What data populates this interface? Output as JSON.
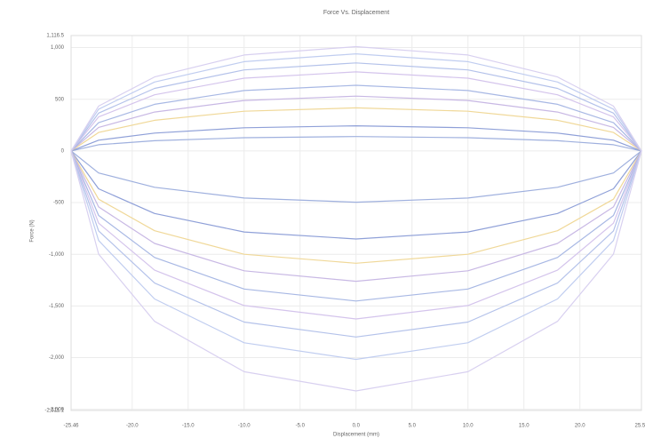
{
  "chart_data": {
    "type": "line",
    "title": "Force Vs. Displacement",
    "x_label": "Displacement (mm)",
    "y_label": "Force (N)",
    "x": [
      -25.46,
      -23,
      -18,
      -10,
      0,
      10,
      18,
      23,
      25.5,
      25.5,
      23,
      18,
      10,
      0,
      -10,
      -18,
      -23,
      -25.46
    ],
    "series": [
      {
        "color": "#9fb0de",
        "values": [
          0,
          60,
          99,
          128,
          139,
          128,
          99,
          60,
          0,
          0,
          -213,
          -352,
          -456,
          -496,
          -456,
          -352,
          -213,
          0
        ]
      },
      {
        "color": "#8fa0d8",
        "values": [
          0,
          104,
          173,
          224,
          243,
          224,
          173,
          104,
          0,
          0,
          -366,
          -605,
          -784,
          -852,
          -784,
          -605,
          -366,
          0
        ]
      },
      {
        "color": "#f0d898",
        "values": [
          0,
          179,
          296,
          384,
          417,
          384,
          296,
          179,
          0,
          0,
          -467,
          -772,
          -1000,
          -1087,
          -1000,
          -772,
          -467,
          0
        ]
      },
      {
        "color": "#c8b8e4",
        "values": [
          0,
          228,
          376,
          488,
          530,
          488,
          376,
          228,
          0,
          0,
          -542,
          -895,
          -1160,
          -1261,
          -1160,
          -895,
          -542,
          0
        ]
      },
      {
        "color": "#a8b8e4",
        "values": [
          0,
          273,
          451,
          584,
          635,
          584,
          451,
          273,
          0,
          0,
          -624,
          -1031,
          -1336,
          -1452,
          -1336,
          -1031,
          -624,
          0
        ]
      },
      {
        "color": "#d4c4ec",
        "values": [
          0,
          329,
          543,
          704,
          765,
          704,
          543,
          329,
          0,
          0,
          -699,
          -1154,
          -1496,
          -1626,
          -1496,
          -1154,
          -699,
          0
        ]
      },
      {
        "color": "#b4c2ea",
        "values": [
          0,
          366,
          605,
          784,
          852,
          784,
          605,
          366,
          0,
          0,
          -774,
          -1278,
          -1656,
          -1800,
          -1656,
          -1278,
          -774,
          0
        ]
      },
      {
        "color": "#c0cdf0",
        "values": [
          0,
          404,
          667,
          864,
          939,
          864,
          667,
          404,
          0,
          0,
          -867,
          -1432,
          -1856,
          -2017,
          -1856,
          -1432,
          -867,
          0
        ]
      },
      {
        "color": "#d8d0f0",
        "values": [
          0,
          434,
          716,
          928,
          1009,
          928,
          716,
          434,
          0,
          0,
          -998,
          -1649,
          -2136,
          -2322,
          -2136,
          -1649,
          -998,
          0
        ]
      }
    ],
    "xlim": [
      -25.46,
      25.5
    ],
    "xticks": [
      {
        "value": -25.46,
        "label": "-25.46"
      },
      {
        "value": -20,
        "label": "-20.0"
      },
      {
        "value": -15,
        "label": "-15.0"
      },
      {
        "value": -10,
        "label": "-10.0"
      },
      {
        "value": -5,
        "label": "-5.0"
      },
      {
        "value": 0,
        "label": "0.0"
      },
      {
        "value": 5,
        "label": "5.0"
      },
      {
        "value": 10,
        "label": "10.0"
      },
      {
        "value": 15,
        "label": "15.0"
      },
      {
        "value": 20,
        "label": "20.0"
      },
      {
        "value": 25.5,
        "label": "25.50"
      }
    ],
    "ylim": [
      -2511.1,
      1116.5
    ],
    "yticks": [
      {
        "value": 1116.5,
        "label": "1,116.5"
      },
      {
        "value": 1000,
        "label": "1,000"
      },
      500,
      0,
      -500,
      {
        "value": -1000,
        "label": "-1,000"
      },
      {
        "value": -1500,
        "label": "-1,500"
      },
      {
        "value": -2000,
        "label": "-2,000"
      },
      {
        "value": -2500,
        "label": "-2,500"
      },
      {
        "value": -2511.1,
        "label": "-2,511.1"
      }
    ],
    "grid": true
  }
}
